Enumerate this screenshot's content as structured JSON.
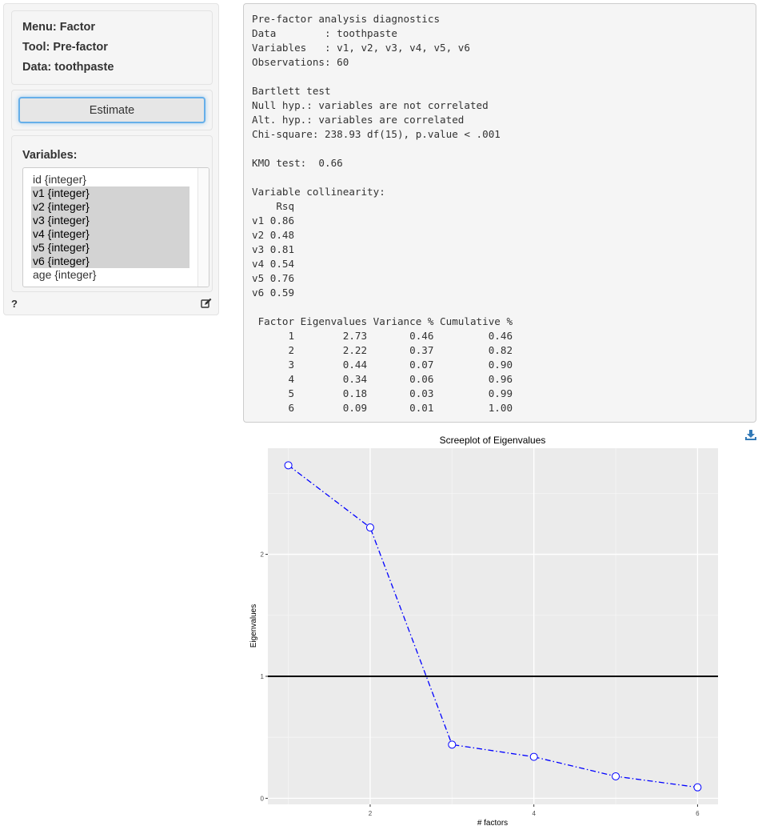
{
  "sidebar": {
    "info": [
      "Menu: Factor",
      "Tool: Pre-factor",
      "Data: toothpaste"
    ],
    "estimate_label": "Estimate",
    "variables_label": "Variables:",
    "variables": [
      {
        "label": "id {integer}",
        "selected": false
      },
      {
        "label": "v1 {integer}",
        "selected": true
      },
      {
        "label": "v2 {integer}",
        "selected": true
      },
      {
        "label": "v3 {integer}",
        "selected": true
      },
      {
        "label": "v4 {integer}",
        "selected": true
      },
      {
        "label": "v5 {integer}",
        "selected": true
      },
      {
        "label": "v6 {integer}",
        "selected": true
      },
      {
        "label": "age {integer}",
        "selected": false
      }
    ],
    "help_label": "?",
    "icons": {
      "edit": "edit-icon",
      "download": "download-icon"
    }
  },
  "output": {
    "lines": [
      "Pre-factor analysis diagnostics",
      "Data        : toothpaste",
      "Variables   : v1, v2, v3, v4, v5, v6",
      "Observations: 60",
      "",
      "Bartlett test",
      "Null hyp.: variables are not correlated",
      "Alt. hyp.: variables are correlated",
      "Chi-square: 238.93 df(15), p.value < .001",
      "",
      "KMO test:  0.66",
      "",
      "Variable collinearity:",
      "    Rsq",
      "v1 0.86",
      "v2 0.48",
      "v3 0.81",
      "v4 0.54",
      "v5 0.76",
      "v6 0.59",
      "",
      " Factor Eigenvalues Variance % Cumulative %",
      "      1        2.73       0.46         0.46",
      "      2        2.22       0.37         0.82",
      "      3        0.44       0.07         0.90",
      "      4        0.34       0.06         0.96",
      "      5        0.18       0.03         0.99",
      "      6        0.09       0.01         1.00"
    ]
  },
  "chart_data": {
    "type": "line",
    "title": "Screeplot of Eigenvalues",
    "xlabel": "# factors",
    "ylabel": "Eigenvalues",
    "x": [
      1,
      2,
      3,
      4,
      5,
      6
    ],
    "y": [
      2.73,
      2.22,
      0.44,
      0.34,
      0.18,
      0.09
    ],
    "x_ticks": [
      2,
      4,
      6
    ],
    "y_ticks": [
      0,
      1,
      2
    ],
    "xlim": [
      0.75,
      6.25
    ],
    "ylim": [
      -0.05,
      2.87
    ],
    "reference_line_y": 1,
    "line_style": "dash-dot",
    "series_color": "#0000ff",
    "panel_color": "#ebebeb",
    "grid": true
  }
}
